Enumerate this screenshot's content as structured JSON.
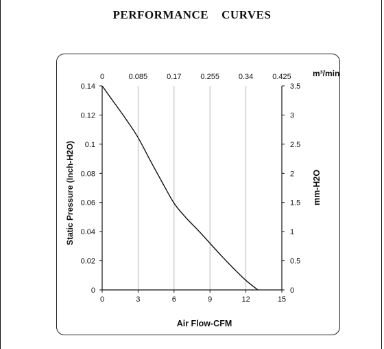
{
  "page": {
    "title": "PERFORMANCE    CURVES"
  },
  "chart_data": {
    "type": "line",
    "title": "",
    "xlabel": "Air Flow-CFM",
    "ylabel_left": "Static Pressure (Inch-H2O)",
    "ylabel_right": "mm-H2O",
    "xlabel_top": "m³/min",
    "xlim": [
      0,
      15
    ],
    "ylim": [
      0,
      0.14
    ],
    "ylim_right": [
      0,
      3.5
    ],
    "x_ticks": [
      "0",
      "3",
      "6",
      "9",
      "12",
      "15"
    ],
    "y_ticks_left": [
      "0",
      "0.02",
      "0.04",
      "0.06",
      "0.08",
      "0.1",
      "0.12",
      "0.14"
    ],
    "y_ticks_right": [
      "0",
      "0.5",
      "1",
      "1.5",
      "2",
      "2.5",
      "3",
      "3.5"
    ],
    "x_ticks_top": [
      "0",
      "0.085",
      "0.17",
      "0.255",
      "0.34",
      "0.425"
    ],
    "grid": "vertical",
    "series": [
      {
        "x": [
          0,
          1,
          2,
          3,
          4,
          5,
          6,
          7,
          8,
          9,
          10,
          11,
          12,
          13
        ],
        "y": [
          0.14,
          0.1285,
          0.117,
          0.1045,
          0.089,
          0.074,
          0.0595,
          0.0495,
          0.041,
          0.032,
          0.023,
          0.0145,
          0.0065,
          0
        ]
      }
    ],
    "colors": {
      "curve": "#111111",
      "grid": "#b5b5b5",
      "axis": "#111111"
    }
  }
}
